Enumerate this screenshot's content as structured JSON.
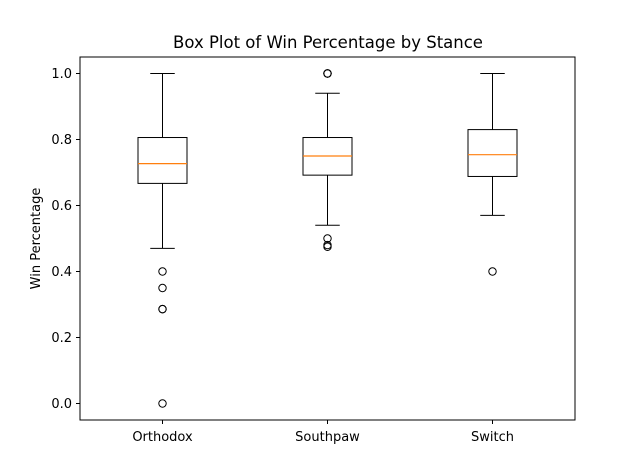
{
  "chart_data": {
    "type": "boxplot",
    "title": "Box Plot of Win Percentage by Stance",
    "xlabel": "",
    "ylabel": "Win Percentage",
    "categories": [
      "Orthodox",
      "Southpaw",
      "Switch"
    ],
    "ylim": [
      -0.05,
      1.05
    ],
    "yticks": [
      0.0,
      0.2,
      0.4,
      0.6,
      0.8,
      1.0
    ],
    "ytick_labels": [
      "0.0",
      "0.2",
      "0.4",
      "0.6",
      "0.8",
      "1.0"
    ],
    "grid": false,
    "boxes": [
      {
        "category": "Orthodox",
        "whisker_low": 0.47,
        "q1": 0.667,
        "median": 0.727,
        "q3": 0.806,
        "whisker_high": 1.0,
        "outliers": [
          0.4,
          0.35,
          0.286,
          0.286,
          0.0
        ]
      },
      {
        "category": "Southpaw",
        "whisker_low": 0.54,
        "q1": 0.692,
        "median": 0.75,
        "q3": 0.806,
        "whisker_high": 0.94,
        "outliers": [
          1.0,
          1.0,
          1.0,
          0.5,
          0.48,
          0.475
        ]
      },
      {
        "category": "Switch",
        "whisker_low": 0.57,
        "q1": 0.688,
        "median": 0.754,
        "q3": 0.83,
        "whisker_high": 1.0,
        "outliers": [
          0.4
        ]
      }
    ],
    "colors": {
      "box": "#000000",
      "median": "#ff7f0e",
      "outlier": "#000000"
    }
  }
}
